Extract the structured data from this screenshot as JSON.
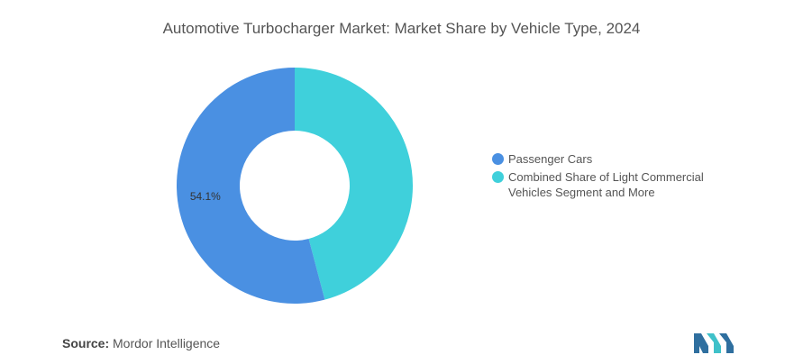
{
  "title": "Automotive Turbocharger Market: Market Share by Vehicle Type, 2024",
  "source": {
    "label": "Source:",
    "text": "Mordor Intelligence"
  },
  "chart_data": {
    "type": "pie",
    "title": "Automotive Turbocharger Market: Market Share by Vehicle Type, 2024",
    "donut": true,
    "legend_position": "right",
    "slices": [
      {
        "label": "Passenger Cars",
        "value": 54.1,
        "display": "54.1%",
        "color": "#4a90e2"
      },
      {
        "label": "Combined Share of Light Commercial Vehicles Segment and More",
        "value": 45.9,
        "display": "",
        "color": "#3fd0db"
      }
    ]
  },
  "logo": {
    "icon": "mordor-intelligence-logo",
    "colors": [
      "#2f6f9f",
      "#3fc1c9"
    ]
  }
}
